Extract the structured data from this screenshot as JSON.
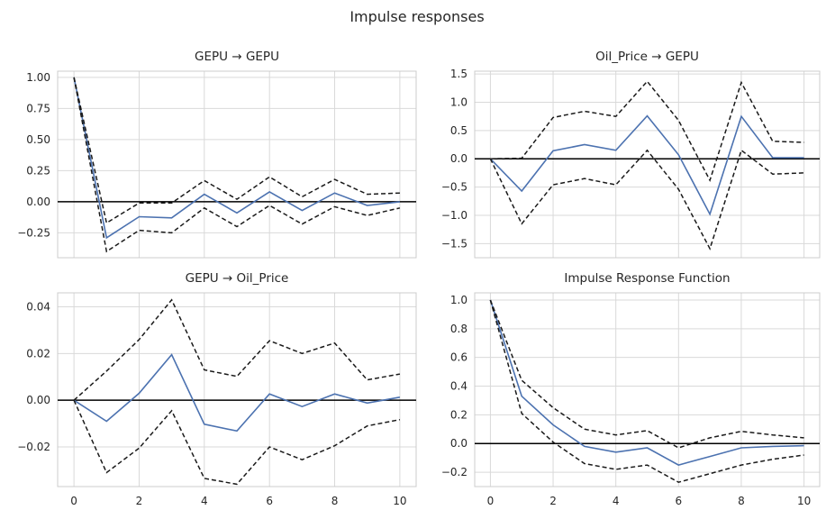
{
  "figure": {
    "title": "Impulse responses"
  },
  "chart_data": [
    {
      "type": "line",
      "title": "GEPU → GEPU",
      "x": [
        0,
        1,
        2,
        3,
        4,
        5,
        6,
        7,
        8,
        9,
        10
      ],
      "ylim": [
        -0.45,
        1.05
      ],
      "yticks": [
        -0.25,
        0.0,
        0.25,
        0.5,
        0.75,
        1.0
      ],
      "ytick_labels": [
        "−0.25",
        "0.00",
        "0.25",
        "0.50",
        "0.75",
        "1.00"
      ],
      "xticks": [
        0,
        2,
        4,
        6,
        8,
        10
      ],
      "grid": true,
      "zero_line": true,
      "series": [
        {
          "role": "response",
          "values": [
            1.0,
            -0.29,
            -0.12,
            -0.13,
            0.06,
            -0.09,
            0.08,
            -0.07,
            0.07,
            -0.03,
            0.0
          ]
        },
        {
          "role": "upper",
          "values": [
            1.0,
            -0.17,
            -0.01,
            -0.01,
            0.17,
            0.02,
            0.2,
            0.04,
            0.18,
            0.06,
            0.07
          ]
        },
        {
          "role": "lower",
          "values": [
            1.0,
            -0.4,
            -0.23,
            -0.25,
            -0.05,
            -0.2,
            -0.03,
            -0.18,
            -0.04,
            -0.11,
            -0.05
          ]
        }
      ]
    },
    {
      "type": "line",
      "title": "Oil_Price → GEPU",
      "x": [
        0,
        1,
        2,
        3,
        4,
        5,
        6,
        7,
        8,
        9,
        10
      ],
      "ylim": [
        -1.75,
        1.55
      ],
      "yticks": [
        -1.5,
        -1.0,
        -0.5,
        0.0,
        0.5,
        1.0,
        1.5
      ],
      "ytick_labels": [
        "−1.5",
        "−1.0",
        "−0.5",
        "0.0",
        "0.5",
        "1.0",
        "1.5"
      ],
      "xticks": [
        0,
        2,
        4,
        6,
        8,
        10
      ],
      "grid": true,
      "zero_line": true,
      "series": [
        {
          "role": "response",
          "values": [
            0.0,
            -0.57,
            0.14,
            0.25,
            0.15,
            0.76,
            0.07,
            -0.98,
            0.75,
            0.02,
            0.02
          ]
        },
        {
          "role": "upper",
          "values": [
            0.0,
            0.01,
            0.73,
            0.84,
            0.75,
            1.37,
            0.68,
            -0.38,
            1.35,
            0.31,
            0.29
          ]
        },
        {
          "role": "lower",
          "values": [
            0.0,
            -1.15,
            -0.46,
            -0.35,
            -0.46,
            0.15,
            -0.54,
            -1.59,
            0.15,
            -0.27,
            -0.25
          ]
        }
      ]
    },
    {
      "type": "line",
      "title": "GEPU → Oil_Price",
      "x": [
        0,
        1,
        2,
        3,
        4,
        5,
        6,
        7,
        8,
        9,
        10
      ],
      "ylim": [
        -0.037,
        0.046
      ],
      "yticks": [
        -0.02,
        0.0,
        0.02,
        0.04
      ],
      "ytick_labels": [
        "−0.02",
        "0.00",
        "0.02",
        "0.04"
      ],
      "xticks": [
        0,
        2,
        4,
        6,
        8,
        10
      ],
      "xtick_labels": [
        "0",
        "2",
        "4",
        "6",
        "8",
        "10"
      ],
      "grid": true,
      "zero_line": true,
      "series": [
        {
          "role": "response",
          "values": [
            0.0,
            -0.009,
            0.003,
            0.0195,
            -0.0103,
            -0.0132,
            0.0027,
            -0.0027,
            0.0027,
            -0.0012,
            0.0013
          ]
        },
        {
          "role": "upper",
          "values": [
            0.0,
            0.0125,
            0.026,
            0.043,
            0.013,
            0.0102,
            0.0255,
            0.02,
            0.0245,
            0.0087,
            0.0112
          ]
        },
        {
          "role": "lower",
          "values": [
            0.0,
            -0.031,
            -0.0205,
            -0.0045,
            -0.0335,
            -0.036,
            -0.02,
            -0.0255,
            -0.0195,
            -0.011,
            -0.0083
          ]
        }
      ]
    },
    {
      "type": "line",
      "title": "Impulse Response Function",
      "x": [
        0,
        1,
        2,
        3,
        4,
        5,
        6,
        7,
        8,
        9,
        10
      ],
      "ylim": [
        -0.3,
        1.05
      ],
      "yticks": [
        -0.2,
        0.0,
        0.2,
        0.4,
        0.6,
        0.8,
        1.0
      ],
      "ytick_labels": [
        "−0.2",
        "0.0",
        "0.2",
        "0.4",
        "0.6",
        "0.8",
        "1.0"
      ],
      "xticks": [
        0,
        2,
        4,
        6,
        8,
        10
      ],
      "xtick_labels": [
        "0",
        "2",
        "4",
        "6",
        "8",
        "10"
      ],
      "grid": true,
      "zero_line": true,
      "series": [
        {
          "role": "response",
          "values": [
            1.0,
            0.33,
            0.13,
            -0.02,
            -0.06,
            -0.03,
            -0.15,
            -0.09,
            -0.03,
            -0.02,
            -0.015
          ]
        },
        {
          "role": "upper",
          "values": [
            1.0,
            0.44,
            0.25,
            0.1,
            0.06,
            0.09,
            -0.03,
            0.04,
            0.085,
            0.06,
            0.04
          ]
        },
        {
          "role": "lower",
          "values": [
            1.0,
            0.21,
            0.01,
            -0.14,
            -0.18,
            -0.15,
            -0.27,
            -0.21,
            -0.15,
            -0.11,
            -0.08
          ]
        }
      ]
    }
  ]
}
